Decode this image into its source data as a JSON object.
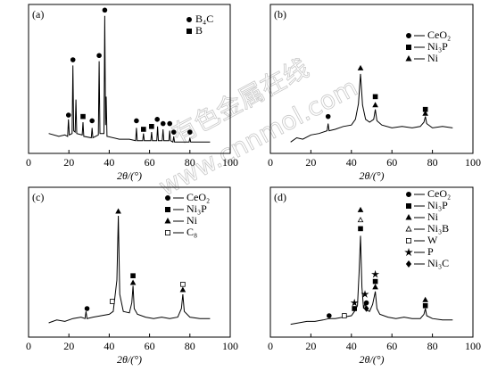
{
  "watermark": [
    "有色金属在线",
    "www.cnnmol.com"
  ],
  "chart_data": [
    {
      "type": "line",
      "panel_label": "(a)",
      "xlabel": "2θ/(°)",
      "xlim": [
        0,
        100
      ],
      "xticks": [
        0,
        20,
        40,
        60,
        80,
        100
      ],
      "ylim": [
        0,
        105
      ],
      "color": "#000000",
      "x": [
        10,
        15,
        18,
        19.4,
        19.8,
        20.2,
        21.6,
        22,
        22.4,
        23.1,
        23.5,
        23.9,
        26.6,
        27,
        27.4,
        31.1,
        31.5,
        31.9,
        34.6,
        35,
        35.4,
        37.4,
        37.8,
        38.2,
        38.5,
        38.9,
        45,
        50,
        53.1,
        53.5,
        53.9,
        56.6,
        57,
        57.4,
        60.6,
        61,
        61.4,
        63.6,
        64,
        64.4,
        66.3,
        66.7,
        67.1,
        69.6,
        70,
        70.4,
        71.6,
        72,
        72.4,
        79.6,
        80,
        80.4,
        85,
        90
      ],
      "values": [
        14,
        12,
        13,
        12,
        24,
        13,
        14,
        62,
        16,
        15,
        38,
        14,
        13,
        22,
        12,
        11,
        18,
        11,
        13,
        65,
        14,
        14,
        97,
        20,
        40,
        12,
        10,
        10,
        9,
        18,
        9,
        9,
        14,
        9,
        9,
        15,
        9,
        9,
        19,
        9,
        9,
        17,
        9,
        9,
        16,
        9,
        8,
        12,
        8,
        8,
        11,
        8,
        8,
        8
      ],
      "legend": [
        {
          "symbol": "circle",
          "label": "B₄C"
        },
        {
          "symbol": "square",
          "label": "B"
        }
      ],
      "peak_markers": [
        {
          "x": 19.8,
          "y": 27,
          "symbol": "circle"
        },
        {
          "x": 22,
          "y": 66,
          "symbol": "circle"
        },
        {
          "x": 27,
          "y": 26,
          "symbol": "square"
        },
        {
          "x": 31.5,
          "y": 23,
          "symbol": "circle"
        },
        {
          "x": 35,
          "y": 69,
          "symbol": "circle"
        },
        {
          "x": 37.8,
          "y": 101,
          "symbol": "circle"
        },
        {
          "x": 53.5,
          "y": 23,
          "symbol": "circle"
        },
        {
          "x": 57,
          "y": 17,
          "symbol": "square"
        },
        {
          "x": 61,
          "y": 19,
          "symbol": "square"
        },
        {
          "x": 63.8,
          "y": 24,
          "symbol": "circle"
        },
        {
          "x": 66.7,
          "y": 21,
          "symbol": "circle"
        },
        {
          "x": 70,
          "y": 21,
          "symbol": "circle"
        },
        {
          "x": 72,
          "y": 15,
          "symbol": "circle"
        },
        {
          "x": 80,
          "y": 15,
          "symbol": "circle"
        }
      ]
    },
    {
      "type": "line",
      "panel_label": "(b)",
      "xlabel": "2θ/(°)",
      "xlim": [
        0,
        100
      ],
      "xticks": [
        0,
        20,
        40,
        60,
        80,
        100
      ],
      "ylim": [
        0,
        105
      ],
      "color": "#000000",
      "x": [
        10,
        13,
        16,
        20,
        24,
        28,
        28.5,
        29,
        32,
        36,
        40,
        42,
        43.5,
        44.5,
        45.5,
        47,
        49,
        51,
        51.8,
        52.6,
        55,
        60,
        65,
        70,
        74,
        75.8,
        76.5,
        77.2,
        80,
        85,
        90
      ],
      "values": [
        8,
        11,
        10,
        13,
        14,
        16,
        21,
        16,
        17,
        19,
        20,
        24,
        35,
        56,
        34,
        24,
        22,
        24,
        31,
        23,
        20,
        18,
        19,
        18,
        19,
        22,
        26,
        21,
        18,
        19,
        18
      ],
      "legend": [
        {
          "symbol": "circle",
          "label": "CeO₂"
        },
        {
          "symbol": "square",
          "label": "Ni₃P"
        },
        {
          "symbol": "triangle",
          "label": "Ni"
        }
      ],
      "peak_markers": [
        {
          "x": 28.5,
          "y": 26,
          "symbol": "circle"
        },
        {
          "x": 44.5,
          "y": 60,
          "symbol": "triangle"
        },
        {
          "x": 51.8,
          "y": 40,
          "symbol": "square"
        },
        {
          "x": 51.8,
          "y": 34,
          "symbol": "triangle"
        },
        {
          "x": 76.5,
          "y": 31,
          "symbol": "square"
        },
        {
          "x": 76.5,
          "y": 28,
          "symbol": "triangle"
        }
      ]
    },
    {
      "type": "line",
      "panel_label": "(c)",
      "xlabel": "2θ/(°)",
      "xlim": [
        0,
        100
      ],
      "xticks": [
        0,
        20,
        40,
        60,
        80,
        100
      ],
      "ylim": [
        0,
        105
      ],
      "color": "#000000",
      "x": [
        10,
        14,
        18,
        22,
        26,
        28,
        28.5,
        29,
        32,
        36,
        40,
        42,
        43.8,
        44.5,
        45.2,
        47,
        50,
        51.2,
        51.8,
        52.4,
        54,
        58,
        62,
        66,
        70,
        74,
        75.8,
        76.5,
        77.2,
        80,
        85,
        90
      ],
      "values": [
        10,
        12,
        11,
        13,
        14,
        13,
        18,
        13,
        14,
        15,
        16,
        18,
        40,
        85,
        30,
        18,
        17,
        24,
        36,
        20,
        16,
        14,
        13,
        14,
        13,
        14,
        20,
        30,
        18,
        14,
        13,
        13
      ],
      "legend": [
        {
          "symbol": "circle",
          "label": "CeO₂"
        },
        {
          "symbol": "square",
          "label": "Ni₃P"
        },
        {
          "symbol": "triangle",
          "label": "Ni"
        },
        {
          "symbol": "open-square",
          "label": "C₈"
        }
      ],
      "peak_markers": [
        {
          "x": 29,
          "y": 20,
          "symbol": "circle"
        },
        {
          "x": 41.5,
          "y": 25,
          "symbol": "open-square"
        },
        {
          "x": 44.5,
          "y": 88,
          "symbol": "triangle"
        },
        {
          "x": 51.8,
          "y": 43,
          "symbol": "square"
        },
        {
          "x": 51.8,
          "y": 38,
          "symbol": "triangle"
        },
        {
          "x": 76.5,
          "y": 37,
          "symbol": "open-square"
        },
        {
          "x": 76.5,
          "y": 33,
          "symbol": "triangle"
        }
      ]
    },
    {
      "type": "line",
      "panel_label": "(d)",
      "xlabel": "2θ/(°)",
      "xlim": [
        0,
        100
      ],
      "xticks": [
        0,
        20,
        40,
        60,
        80,
        100
      ],
      "ylim": [
        0,
        105
      ],
      "color": "#000000",
      "x": [
        10,
        14,
        18,
        22,
        26,
        29,
        32,
        36,
        40,
        41.5,
        43,
        43.8,
        44.5,
        45.2,
        46,
        46.7,
        47.4,
        49,
        50.5,
        51.8,
        52.6,
        54,
        58,
        62,
        66,
        70,
        74,
        75.8,
        76.5,
        77.2,
        80,
        85,
        90
      ],
      "values": [
        9,
        10,
        11,
        11,
        12,
        13,
        13,
        14,
        15,
        18,
        22,
        45,
        71,
        35,
        20,
        24,
        19,
        18,
        23,
        32,
        20,
        16,
        14,
        13,
        14,
        13,
        13,
        16,
        20,
        15,
        13,
        12,
        12
      ],
      "legend": [
        {
          "symbol": "circle",
          "label": "CeO₂"
        },
        {
          "symbol": "square",
          "label": "Ni₃P"
        },
        {
          "symbol": "triangle",
          "label": "Ni"
        },
        {
          "symbol": "open-triangle",
          "label": "Ni₃B"
        },
        {
          "symbol": "open-square",
          "label": "W"
        },
        {
          "symbol": "star",
          "label": "P"
        },
        {
          "symbol": "diamond",
          "label": "Ni₃C"
        }
      ],
      "peak_markers": [
        {
          "x": 29,
          "y": 15,
          "symbol": "circle"
        },
        {
          "x": 36.5,
          "y": 15,
          "symbol": "open-square"
        },
        {
          "x": 41.5,
          "y": 24,
          "symbol": "star"
        },
        {
          "x": 41.5,
          "y": 20,
          "symbol": "square"
        },
        {
          "x": 44.5,
          "y": 89,
          "symbol": "triangle"
        },
        {
          "x": 44.5,
          "y": 82,
          "symbol": "open-triangle"
        },
        {
          "x": 44.5,
          "y": 76,
          "symbol": "square"
        },
        {
          "x": 46.7,
          "y": 30,
          "symbol": "star"
        },
        {
          "x": 47.4,
          "y": 24,
          "symbol": "circle"
        },
        {
          "x": 47.4,
          "y": 20,
          "symbol": "diamond"
        },
        {
          "x": 51.8,
          "y": 44,
          "symbol": "star"
        },
        {
          "x": 51.8,
          "y": 39,
          "symbol": "square"
        },
        {
          "x": 51.8,
          "y": 35,
          "symbol": "triangle"
        },
        {
          "x": 76.5,
          "y": 26,
          "symbol": "triangle"
        },
        {
          "x": 76.5,
          "y": 22,
          "symbol": "square"
        }
      ]
    }
  ]
}
